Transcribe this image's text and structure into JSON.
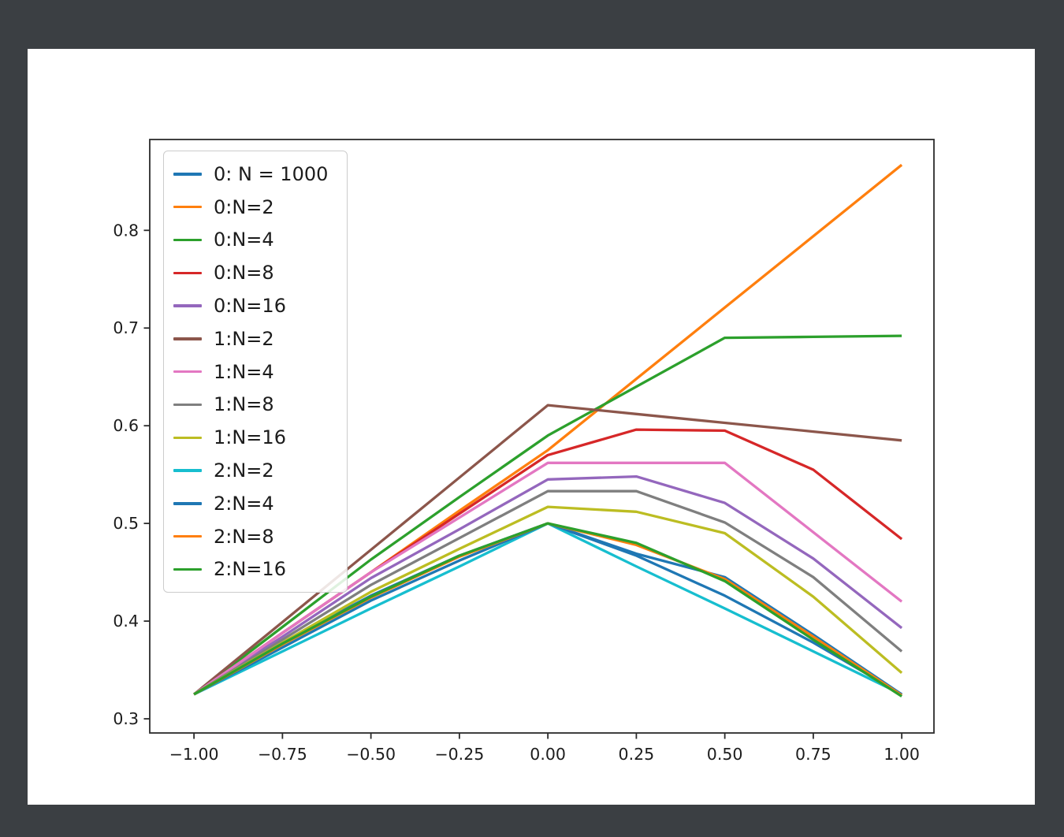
{
  "window": {
    "background_color": "#3b3f43",
    "figure_background_color": "#ffffff",
    "text_color": "#1c1c1c",
    "spine_color": "#2b2b2b",
    "legend_background": "rgba(255,255,255,0.85)",
    "legend_border_color": "#cccccc"
  },
  "chart_data": {
    "type": "line",
    "title": "",
    "xlabel": "",
    "ylabel": "",
    "grid": false,
    "legend_position": "upper-left",
    "xlim": [
      -1.125,
      1.091
    ],
    "ylim": [
      0.2855,
      0.893
    ],
    "x_ticks": {
      "values": [
        -1.0,
        -0.75,
        -0.5,
        -0.25,
        0.0,
        0.25,
        0.5,
        0.75,
        1.0
      ],
      "labels": [
        "−1.00",
        "−0.75",
        "−0.50",
        "−0.25",
        "0.00",
        "0.25",
        "0.50",
        "0.75",
        "1.00"
      ]
    },
    "y_ticks": {
      "values": [
        0.3,
        0.4,
        0.5,
        0.6,
        0.7,
        0.8
      ],
      "labels": [
        "0.3",
        "0.4",
        "0.5",
        "0.6",
        "0.7",
        "0.8"
      ]
    },
    "x": [
      -1.0,
      -0.75,
      -0.5,
      -0.25,
      0.0,
      0.25,
      0.5,
      0.75,
      1.0
    ],
    "series": [
      {
        "name": "0: N = 1000",
        "color": "#1f77b4",
        "values": [
          0.325,
          0.378,
          0.426,
          0.467,
          0.5,
          0.467,
          0.426,
          0.378,
          0.325
        ]
      },
      {
        "name": "0:N=2",
        "color": "#ff7f0e",
        "values": [
          0.325,
          0.388,
          0.45,
          0.513,
          0.575,
          0.648,
          0.721,
          0.794,
          0.867
        ]
      },
      {
        "name": "0:N=4",
        "color": "#2ca02c",
        "values": [
          0.325,
          0.394,
          0.463,
          0.527,
          0.59,
          0.64,
          0.69,
          0.691,
          0.692
        ]
      },
      {
        "name": "0:N=8",
        "color": "#d62728",
        "values": [
          0.325,
          0.388,
          0.45,
          0.51,
          0.57,
          0.596,
          0.595,
          0.555,
          0.484
        ]
      },
      {
        "name": "0:N=16",
        "color": "#9467bd",
        "values": [
          0.325,
          0.384,
          0.444,
          0.494,
          0.545,
          0.548,
          0.521,
          0.464,
          0.393
        ]
      },
      {
        "name": "1:N=2",
        "color": "#8c564b",
        "values": [
          0.325,
          0.399,
          0.473,
          0.547,
          0.621,
          0.612,
          0.603,
          0.594,
          0.585
        ]
      },
      {
        "name": "1:N=4",
        "color": "#e377c2",
        "values": [
          0.325,
          0.388,
          0.45,
          0.506,
          0.562,
          0.562,
          0.562,
          0.491,
          0.42
        ]
      },
      {
        "name": "1:N=8",
        "color": "#7f7f7f",
        "values": [
          0.325,
          0.381,
          0.437,
          0.485,
          0.533,
          0.533,
          0.501,
          0.445,
          0.369
        ]
      },
      {
        "name": "1:N=16",
        "color": "#bcbd22",
        "values": [
          0.325,
          0.378,
          0.43,
          0.474,
          0.517,
          0.512,
          0.49,
          0.425,
          0.347
        ]
      },
      {
        "name": "2:N=2",
        "color": "#17becf",
        "values": [
          0.325,
          0.369,
          0.413,
          0.456,
          0.5,
          0.456,
          0.413,
          0.369,
          0.325
        ]
      },
      {
        "name": "2:N=4",
        "color": "#1f77b4",
        "values": [
          0.325,
          0.373,
          0.421,
          0.462,
          0.5,
          0.469,
          0.445,
          0.386,
          0.325
        ]
      },
      {
        "name": "2:N=8",
        "color": "#ff7f0e",
        "values": [
          0.325,
          0.376,
          0.424,
          0.466,
          0.5,
          0.478,
          0.443,
          0.384,
          0.324
        ]
      },
      {
        "name": "2:N=16",
        "color": "#2ca02c",
        "values": [
          0.325,
          0.377,
          0.425,
          0.467,
          0.5,
          0.48,
          0.441,
          0.381,
          0.323
        ]
      }
    ]
  }
}
